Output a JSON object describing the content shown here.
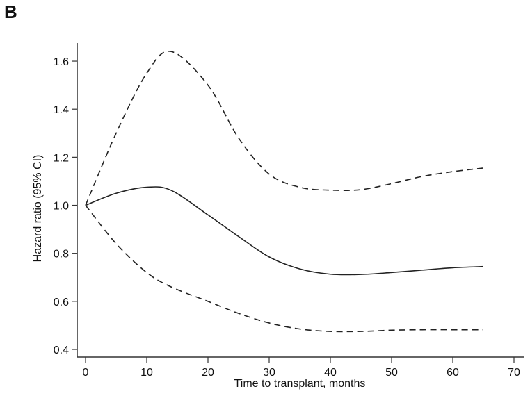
{
  "panel_label": "B",
  "chart_data": {
    "type": "line",
    "title": "",
    "xlabel": "Time to transplant, months",
    "ylabel": "Hazard ratio (95% CI)",
    "xlim": [
      0,
      70
    ],
    "ylim": [
      0.4,
      1.65
    ],
    "xticks": [
      0,
      10,
      20,
      30,
      40,
      50,
      60,
      70
    ],
    "yticks": [
      "0.4",
      "0.6",
      "0.8",
      "1.0",
      "1.2",
      "1.4",
      "1.6"
    ],
    "grid": false,
    "x": [
      0,
      5,
      10,
      14,
      20,
      25,
      30,
      35,
      40,
      45,
      50,
      55,
      60,
      65
    ],
    "series": [
      {
        "name": "Hazard ratio",
        "style": "solid",
        "values": [
          1.0,
          1.05,
          1.075,
          1.062,
          0.96,
          0.87,
          0.785,
          0.735,
          0.713,
          0.712,
          0.72,
          0.73,
          0.74,
          0.745
        ]
      },
      {
        "name": "Upper 95% CI",
        "style": "dashed",
        "values": [
          1.0,
          1.3,
          1.55,
          1.64,
          1.5,
          1.28,
          1.13,
          1.075,
          1.063,
          1.065,
          1.09,
          1.12,
          1.14,
          1.155
        ]
      },
      {
        "name": "Lower 95% CI",
        "style": "dashed",
        "values": [
          1.0,
          0.84,
          0.72,
          0.66,
          0.6,
          0.55,
          0.51,
          0.485,
          0.475,
          0.475,
          0.48,
          0.482,
          0.482,
          0.482
        ]
      }
    ]
  }
}
